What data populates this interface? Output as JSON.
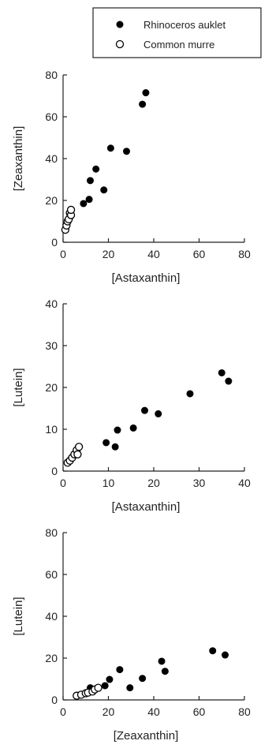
{
  "legend": {
    "entries": [
      {
        "label": "Rhinoceros auklet",
        "marker": "filled-circle"
      },
      {
        "label": "Common murre",
        "marker": "open-circle"
      }
    ]
  },
  "colors": {
    "axis": "#222222",
    "marker_fill": "#000000",
    "open_fill": "#ffffff"
  },
  "chart_data": [
    {
      "type": "scatter",
      "xlabel": "[Astaxanthin]",
      "ylabel": "[Zeaxanthin]",
      "xlim": [
        0,
        80
      ],
      "ylim": [
        0,
        80
      ],
      "xticks": [
        0,
        20,
        40,
        60,
        80
      ],
      "yticks": [
        0,
        20,
        40,
        60,
        80
      ],
      "grid": false,
      "series": [
        {
          "name": "Rhinoceros auklet",
          "marker": "filled",
          "x": [
            3,
            9,
            11.5,
            12,
            14.5,
            18,
            21,
            28,
            35,
            36.5
          ],
          "y": [
            12,
            18.5,
            20.5,
            29.5,
            35,
            25,
            45,
            43.5,
            66,
            71.5
          ]
        },
        {
          "name": "Common murre",
          "marker": "open",
          "x": [
            1,
            1.5,
            2,
            2.5,
            3,
            3.5,
            3.5
          ],
          "y": [
            6,
            8,
            10,
            11,
            14,
            13,
            15.5
          ]
        }
      ]
    },
    {
      "type": "scatter",
      "xlabel": "[Astaxanthin]",
      "ylabel": "[Lutein]",
      "xlim": [
        0,
        40
      ],
      "ylim": [
        0,
        40
      ],
      "xticks": [
        0,
        10,
        20,
        30,
        40
      ],
      "yticks": [
        0,
        10,
        20,
        30,
        40
      ],
      "grid": false,
      "series": [
        {
          "name": "Rhinoceros auklet",
          "marker": "filled",
          "x": [
            9.5,
            11.5,
            12,
            15.5,
            18,
            21,
            28,
            35,
            36.5
          ],
          "y": [
            6.8,
            5.8,
            9.8,
            10.3,
            14.5,
            13.7,
            18.5,
            23.5,
            21.5
          ]
        },
        {
          "name": "Common murre",
          "marker": "open",
          "x": [
            1,
            1.5,
            2,
            2.5,
            3,
            3.2,
            3.5
          ],
          "y": [
            2,
            2.5,
            3.2,
            4,
            5,
            4,
            5.8
          ]
        }
      ]
    },
    {
      "type": "scatter",
      "xlabel": "[Zeaxanthin]",
      "ylabel": "[Lutein]",
      "xlim": [
        0,
        80
      ],
      "ylim": [
        0,
        80
      ],
      "xticks": [
        0,
        20,
        40,
        60,
        80
      ],
      "yticks": [
        0,
        20,
        40,
        60,
        80
      ],
      "grid": false,
      "series": [
        {
          "name": "Rhinoceros auklet",
          "marker": "filled",
          "x": [
            12,
            18.5,
            20.5,
            25,
            29.5,
            35,
            43.5,
            45,
            66,
            71.5
          ],
          "y": [
            5.8,
            6.8,
            9.8,
            14.5,
            5.8,
            10.3,
            18.5,
            13.7,
            23.5,
            21.5
          ]
        },
        {
          "name": "Common murre",
          "marker": "open",
          "x": [
            6,
            8,
            10,
            11,
            13,
            14,
            15.5
          ],
          "y": [
            2,
            2.5,
            3.2,
            3.5,
            4,
            5,
            5.8
          ]
        }
      ]
    }
  ]
}
